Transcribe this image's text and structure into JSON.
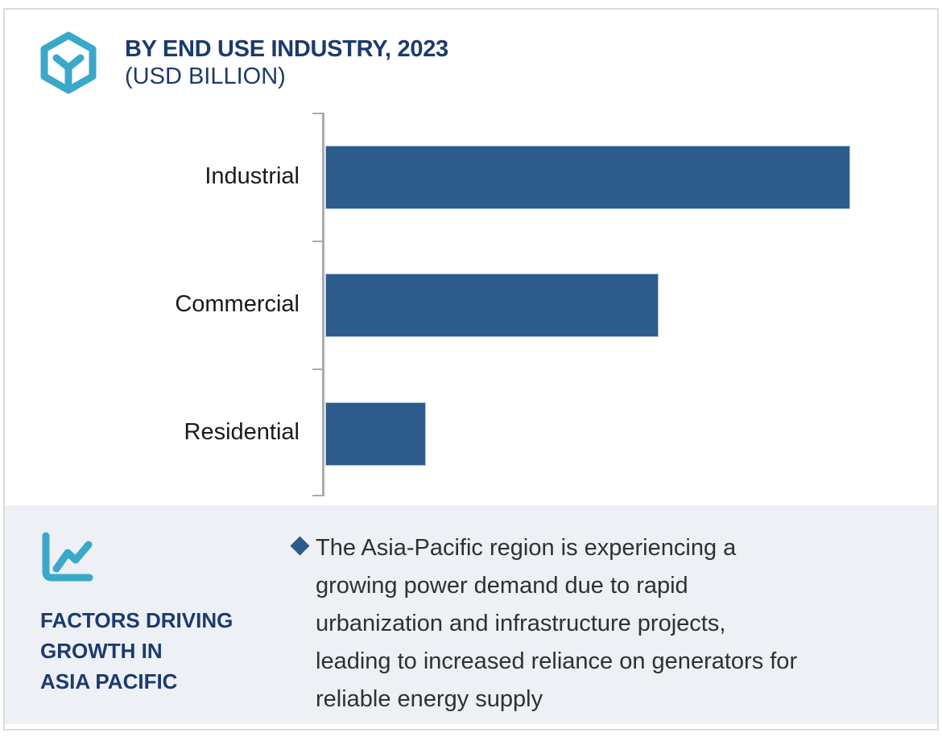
{
  "header": {
    "logo_icon": "hexagon-cube-icon",
    "title": "BY END USE INDUSTRY, 2023",
    "subtitle": "(USD BILLION)"
  },
  "chart_data": {
    "type": "bar",
    "orientation": "horizontal",
    "title": "BY END USE INDUSTRY, 2023",
    "unit": "USD Billion",
    "categories": [
      "Industrial",
      "Commercial",
      "Residential"
    ],
    "values_relative_pct_of_max": [
      100,
      63.5,
      19.2
    ],
    "bar_widths_pct_of_plot": [
      91.8,
      58.3,
      17.6
    ],
    "value_axis_labels_shown": false,
    "grid": false,
    "legend": "none",
    "bar_color": "#2D5B8C",
    "axis_color": "#ABABAB"
  },
  "factors_section": {
    "icon": "line-chart-icon",
    "heading_line1": "FACTORS DRIVING",
    "heading_line2": "GROWTH IN",
    "heading_line3": "ASIA PACIFIC",
    "bullet_marker": "diamond-bullet",
    "bullet_text": "The Asia-Pacific region is experiencing a\ngrowing power demand due to rapid\nurbanization and infrastructure projects,\nleading to increased reliance on generators for\nreliable energy supply"
  },
  "colors": {
    "accent_teal": "#3AA8C9",
    "navy": "#1C3A6E",
    "bar_blue": "#2D5B8C",
    "section_bg": "#EDF0F5",
    "card_border": "#DADCDF",
    "label_text": "#1A1A1A",
    "body_text": "#303030"
  }
}
